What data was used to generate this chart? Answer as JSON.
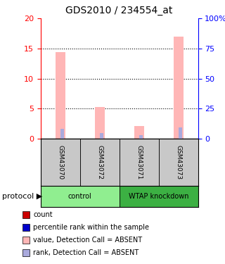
{
  "title": "GDS2010 / 234554_at",
  "samples": [
    "GSM43070",
    "GSM43072",
    "GSM43071",
    "GSM43073"
  ],
  "group_colors": [
    "#90EE90",
    "#3CB043"
  ],
  "sample_bg_color": "#C8C8C8",
  "pink_values": [
    14.4,
    5.3,
    2.1,
    17.0
  ],
  "blue_values": [
    8.2,
    4.7,
    3.1,
    9.2
  ],
  "pink_color": "#FFB6B6",
  "blue_color": "#AAAADD",
  "ylim_left": [
    0,
    20
  ],
  "ylim_right": [
    0,
    100
  ],
  "yticks_left": [
    0,
    5,
    10,
    15,
    20
  ],
  "yticks_right": [
    0,
    25,
    50,
    75,
    100
  ],
  "ytick_labels_right": [
    "0",
    "25",
    "50",
    "75",
    "100%"
  ],
  "legend_items": [
    {
      "color": "#CC0000",
      "label": "count"
    },
    {
      "color": "#0000CC",
      "label": "percentile rank within the sample"
    },
    {
      "color": "#FFB6B6",
      "label": "value, Detection Call = ABSENT"
    },
    {
      "color": "#AAAADD",
      "label": "rank, Detection Call = ABSENT"
    }
  ]
}
